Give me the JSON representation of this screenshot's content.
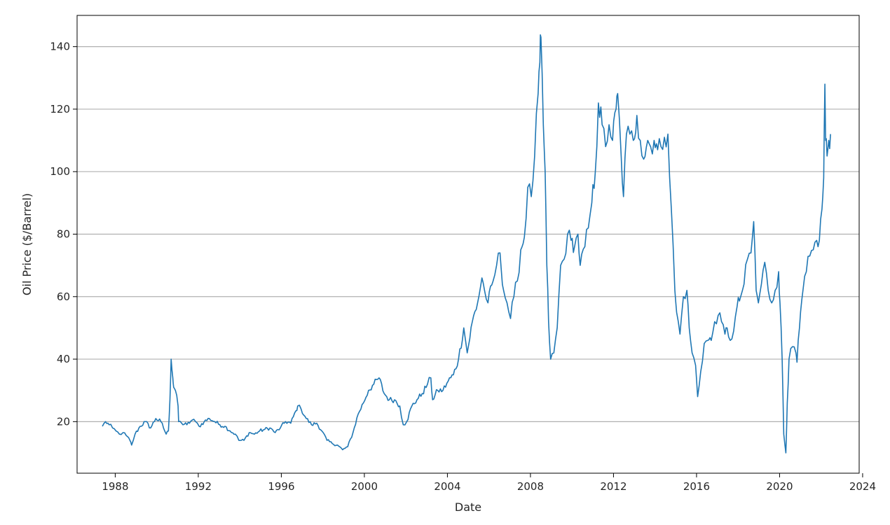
{
  "chart_data": {
    "type": "line",
    "title": "",
    "xlabel": "Date",
    "ylabel": "Oil Price ($/Barrel)",
    "xlim": [
      "1986-03-01",
      "2023-11-01"
    ],
    "ylim": [
      3.5,
      150
    ],
    "x_ticks": [
      "1988",
      "1992",
      "1996",
      "2000",
      "2004",
      "2008",
      "2012",
      "2016",
      "2020",
      "2024"
    ],
    "y_ticks": [
      20,
      40,
      60,
      80,
      100,
      120,
      140
    ],
    "grid": "horizontal",
    "legend": "none",
    "line_color": "#1f77b4",
    "series": [
      {
        "name": "",
        "x": [
          "1987-05-20",
          "1987-07-15",
          "1987-09-15",
          "1987-11-15",
          "1988-01-15",
          "1988-03-15",
          "1988-05-15",
          "1988-07-15",
          "1988-09-15",
          "1988-10-15",
          "1988-12-15",
          "1989-03-15",
          "1989-06-15",
          "1989-09-15",
          "1989-12-15",
          "1990-03-15",
          "1990-06-15",
          "1990-07-25",
          "1990-08-20",
          "1990-09-10",
          "1990-10-10",
          "1990-10-25",
          "1990-11-25",
          "1991-01-10",
          "1991-01-20",
          "1991-03-15",
          "1991-06-15",
          "1991-09-15",
          "1991-11-15",
          "1992-01-15",
          "1992-04-15",
          "1992-07-15",
          "1992-10-15",
          "1993-01-15",
          "1993-04-15",
          "1993-07-15",
          "1993-10-15",
          "1993-12-15",
          "1994-03-15",
          "1994-06-15",
          "1994-09-15",
          "1994-12-15",
          "1995-03-15",
          "1995-06-15",
          "1995-09-15",
          "1995-12-15",
          "1996-03-15",
          "1996-06-15",
          "1996-09-15",
          "1996-10-15",
          "1996-12-15",
          "1997-03-15",
          "1997-06-15",
          "1997-09-15",
          "1997-12-15",
          "1998-03-15",
          "1998-06-15",
          "1998-09-15",
          "1998-12-15",
          "1999-03-15",
          "1999-06-15",
          "1999-09-15",
          "1999-12-15",
          "2000-03-15",
          "2000-06-15",
          "2000-09-15",
          "2000-12-15",
          "2001-03-15",
          "2001-06-15",
          "2001-09-15",
          "2001-11-15",
          "2002-01-15",
          "2002-04-15",
          "2002-07-15",
          "2002-10-15",
          "2003-01-15",
          "2003-03-15",
          "2003-04-15",
          "2003-07-15",
          "2003-10-15",
          "2004-01-15",
          "2004-04-15",
          "2004-07-15",
          "2004-10-15",
          "2004-12-15",
          "2005-03-15",
          "2005-06-15",
          "2005-08-30",
          "2005-10-15",
          "2005-12-15",
          "2006-03-15",
          "2006-05-15",
          "2006-07-15",
          "2006-09-15",
          "2006-11-15",
          "2007-01-15",
          "2007-03-15",
          "2007-05-15",
          "2007-07-15",
          "2007-09-15",
          "2007-11-15",
          "2008-01-15",
          "2008-03-15",
          "2008-05-15",
          "2008-06-15",
          "2008-07-03",
          "2008-08-15",
          "2008-09-15",
          "2008-10-15",
          "2008-11-15",
          "2008-12-20",
          "2009-02-15",
          "2009-04-15",
          "2009-06-15",
          "2009-08-15",
          "2009-10-15",
          "2009-12-15",
          "2010-02-15",
          "2010-04-15",
          "2010-05-25",
          "2010-08-15",
          "2010-10-15",
          "2010-12-15",
          "2011-02-15",
          "2011-04-10",
          "2011-06-15",
          "2011-08-15",
          "2011-10-15",
          "2011-12-15",
          "2012-02-15",
          "2012-03-15",
          "2012-05-15",
          "2012-06-25",
          "2012-08-15",
          "2012-10-15",
          "2012-12-15",
          "2013-02-15",
          "2013-04-15",
          "2013-06-15",
          "2013-08-25",
          "2013-10-15",
          "2013-12-15",
          "2014-02-15",
          "2014-04-15",
          "2014-06-15",
          "2014-08-15",
          "2014-10-15",
          "2014-12-15",
          "2015-01-15",
          "2015-03-15",
          "2015-05-15",
          "2015-07-15",
          "2015-08-25",
          "2015-10-15",
          "2015-12-15",
          "2016-01-20",
          "2016-03-15",
          "2016-05-15",
          "2016-07-15",
          "2016-09-15",
          "2016-11-15",
          "2017-01-15",
          "2017-03-15",
          "2017-05-15",
          "2017-06-21",
          "2017-08-15",
          "2017-10-15",
          "2017-12-15",
          "2018-02-15",
          "2018-04-15",
          "2018-06-15",
          "2018-08-15",
          "2018-10-03",
          "2018-11-15",
          "2018-12-24",
          "2019-02-15",
          "2019-04-15",
          "2019-06-15",
          "2019-08-15",
          "2019-10-15",
          "2019-12-15",
          "2020-01-08",
          "2020-02-15",
          "2020-03-15",
          "2020-04-21",
          "2020-05-15",
          "2020-06-15",
          "2020-08-15",
          "2020-10-15",
          "2020-11-02",
          "2020-12-15",
          "2021-02-15",
          "2021-04-15",
          "2021-06-15",
          "2021-08-15",
          "2021-10-15",
          "2021-12-01",
          "2022-01-15",
          "2022-02-15",
          "2022-03-08",
          "2022-03-20",
          "2022-04-15",
          "2022-05-15",
          "2022-06-15"
        ],
        "y": [
          18.5,
          20,
          19,
          18,
          17,
          16,
          16.5,
          15.5,
          14,
          12.5,
          16,
          18.5,
          20,
          18,
          21,
          20,
          16,
          17,
          27,
          40,
          34,
          31,
          30,
          25,
          20,
          19.5,
          19,
          20.5,
          20,
          18.5,
          20,
          21,
          20,
          19,
          18.5,
          17,
          16,
          14,
          14,
          16.5,
          16,
          17,
          17.5,
          18,
          16.5,
          18,
          20,
          19.5,
          23.5,
          25,
          24,
          21,
          19,
          19.5,
          17,
          14,
          13,
          12.5,
          11,
          12,
          16.5,
          22.5,
          26,
          30,
          32,
          34,
          29,
          27,
          27,
          25,
          19,
          20,
          25,
          27,
          29,
          32,
          34,
          27,
          30,
          30,
          33,
          35,
          40,
          50,
          42,
          52,
          58,
          66,
          62,
          58,
          65,
          70,
          74,
          62,
          58,
          53,
          60,
          65,
          75,
          79,
          95,
          92,
          105,
          125,
          135,
          143,
          115,
          100,
          70,
          52,
          40,
          42,
          50,
          70,
          72,
          80,
          78,
          76,
          80,
          70,
          76,
          82,
          90,
          100,
          122,
          115,
          108,
          115,
          110,
          120,
          125,
          105,
          92,
          112,
          112,
          110,
          118,
          110,
          104,
          110,
          108,
          110,
          107,
          108,
          111,
          112,
          88,
          62,
          55,
          48,
          60,
          62,
          50,
          42,
          38,
          28,
          36,
          45,
          46,
          46,
          52,
          54,
          52,
          48,
          50,
          46,
          49,
          57,
          60,
          64,
          72,
          74,
          84,
          62,
          58,
          64,
          71,
          62,
          58,
          62,
          68,
          58,
          40,
          16,
          10,
          26,
          40,
          44,
          42,
          39,
          50,
          62,
          68,
          73,
          75,
          78,
          78,
          88,
          98,
          128,
          110,
          105,
          110,
          112
        ]
      }
    ]
  }
}
